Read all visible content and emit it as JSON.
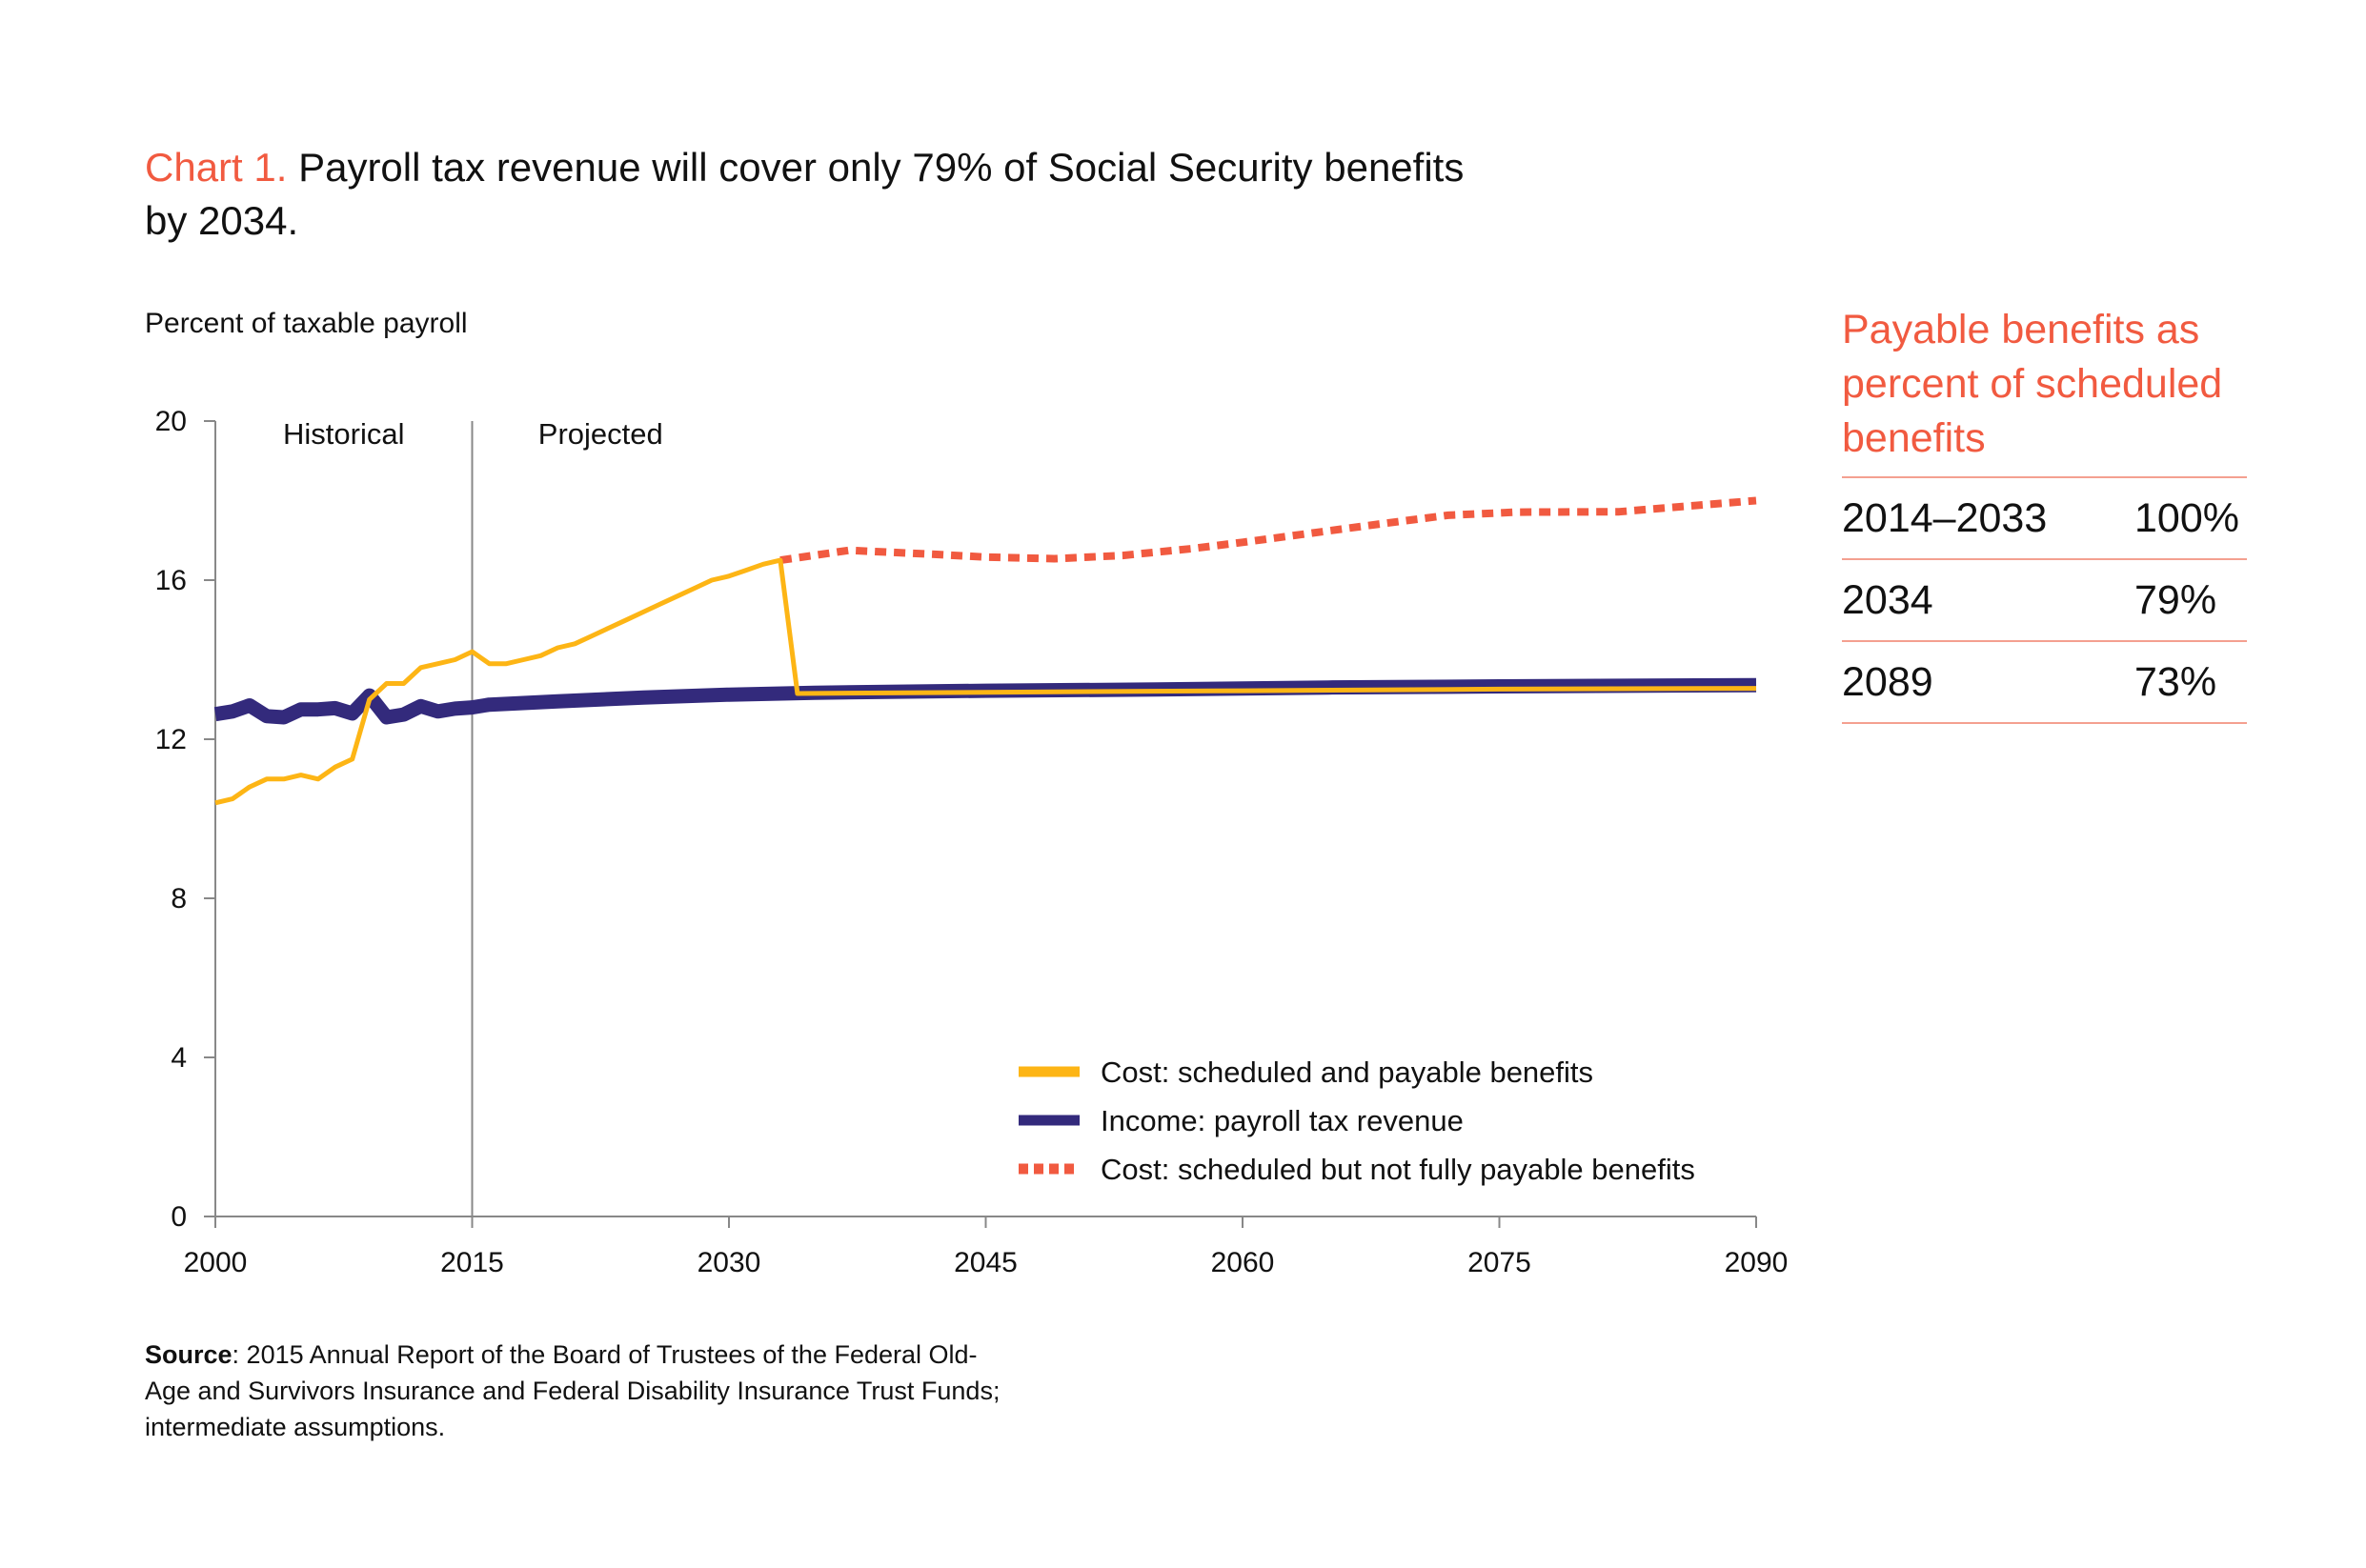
{
  "title": {
    "number": "Chart 1.",
    "text": " Payroll tax revenue will cover only 79% of Social Security benefits by 2034."
  },
  "source": {
    "label": "Source",
    "text": ": 2015 Annual Report of the Board of Trustees of the Federal Old-Age and Survivors Insurance and Federal Disability Insurance Trust Funds; intermediate assumptions."
  },
  "panel": {
    "title": "Payable benefits as percent of scheduled benefits",
    "rows": [
      {
        "period": "2014–2033",
        "value": "100%"
      },
      {
        "period": "2034",
        "value": "79%"
      },
      {
        "period": "2089",
        "value": "73%"
      }
    ]
  },
  "colors": {
    "cost": "#fdb515",
    "income": "#332a7c",
    "scheduled": "#f15a40",
    "accent": "#f15a40",
    "axis": "#888888"
  },
  "chart_data": {
    "type": "line",
    "ylabel": "Percent of taxable payroll",
    "xlim": [
      2000,
      2090
    ],
    "ylim": [
      0,
      20
    ],
    "xticks": [
      2000,
      2015,
      2030,
      2045,
      2060,
      2075,
      2090
    ],
    "yticks": [
      0,
      4,
      8,
      12,
      16,
      20
    ],
    "grid": false,
    "legend_placement": "bottom-right",
    "annotations": [
      {
        "text": "Historical",
        "x": 2007.5
      },
      {
        "text": "Projected",
        "x": 2022.5
      }
    ],
    "divider_year": 2015,
    "series": [
      {
        "name": "Cost: scheduled and payable benefits",
        "style": "solid-thin",
        "color_key": "cost",
        "points": [
          [
            2000,
            10.4
          ],
          [
            2001,
            10.5
          ],
          [
            2002,
            10.8
          ],
          [
            2003,
            11.0
          ],
          [
            2004,
            11.0
          ],
          [
            2005,
            11.1
          ],
          [
            2006,
            11.0
          ],
          [
            2007,
            11.3
          ],
          [
            2008,
            11.5
          ],
          [
            2009,
            13.0
          ],
          [
            2010,
            13.4
          ],
          [
            2011,
            13.4
          ],
          [
            2012,
            13.8
          ],
          [
            2013,
            13.9
          ],
          [
            2014,
            14.0
          ],
          [
            2015,
            14.2
          ],
          [
            2016,
            13.9
          ],
          [
            2017,
            13.9
          ],
          [
            2018,
            14.0
          ],
          [
            2019,
            14.1
          ],
          [
            2020,
            14.3
          ],
          [
            2021,
            14.4
          ],
          [
            2022,
            14.6
          ],
          [
            2023,
            14.8
          ],
          [
            2024,
            15.0
          ],
          [
            2025,
            15.2
          ],
          [
            2026,
            15.4
          ],
          [
            2027,
            15.6
          ],
          [
            2028,
            15.8
          ],
          [
            2029,
            16.0
          ],
          [
            2030,
            16.1
          ],
          [
            2031,
            16.25
          ],
          [
            2032,
            16.4
          ],
          [
            2033,
            16.5
          ],
          [
            2034,
            13.15
          ],
          [
            2045,
            13.18
          ],
          [
            2060,
            13.22
          ],
          [
            2075,
            13.26
          ],
          [
            2090,
            13.28
          ]
        ]
      },
      {
        "name": "Income: payroll tax revenue",
        "style": "solid-thick",
        "color_key": "income",
        "points": [
          [
            2000,
            12.63
          ],
          [
            2001,
            12.7
          ],
          [
            2002,
            12.85
          ],
          [
            2003,
            12.58
          ],
          [
            2004,
            12.55
          ],
          [
            2005,
            12.75
          ],
          [
            2006,
            12.75
          ],
          [
            2007,
            12.78
          ],
          [
            2008,
            12.65
          ],
          [
            2009,
            13.1
          ],
          [
            2010,
            12.55
          ],
          [
            2011,
            12.62
          ],
          [
            2012,
            12.83
          ],
          [
            2013,
            12.7
          ],
          [
            2014,
            12.77
          ],
          [
            2015,
            12.8
          ],
          [
            2016,
            12.87
          ],
          [
            2020,
            12.95
          ],
          [
            2025,
            13.05
          ],
          [
            2030,
            13.12
          ],
          [
            2035,
            13.17
          ],
          [
            2045,
            13.22
          ],
          [
            2055,
            13.25
          ],
          [
            2065,
            13.3
          ],
          [
            2075,
            13.33
          ],
          [
            2090,
            13.36
          ]
        ]
      },
      {
        "name": "Cost: scheduled but not fully payable benefits",
        "style": "dashed",
        "color_key": "scheduled",
        "points": [
          [
            2033,
            16.5
          ],
          [
            2037,
            16.75
          ],
          [
            2042,
            16.65
          ],
          [
            2045,
            16.58
          ],
          [
            2049,
            16.54
          ],
          [
            2053,
            16.62
          ],
          [
            2057,
            16.79
          ],
          [
            2060,
            16.95
          ],
          [
            2064,
            17.18
          ],
          [
            2068,
            17.41
          ],
          [
            2072,
            17.63
          ],
          [
            2076,
            17.71
          ],
          [
            2082,
            17.72
          ],
          [
            2086,
            17.86
          ],
          [
            2090,
            18.0
          ]
        ]
      }
    ]
  }
}
